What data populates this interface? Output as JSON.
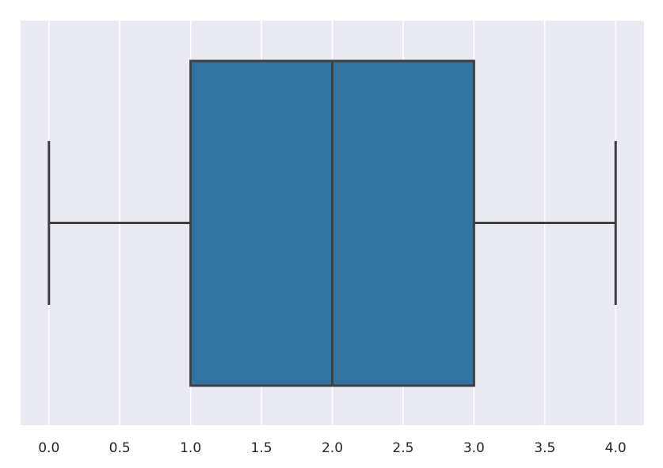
{
  "chart_data": {
    "type": "box",
    "orientation": "horizontal",
    "color": "#3274a1",
    "edge_color": "#3f3f3f",
    "min": 0,
    "q1": 1,
    "median": 2,
    "q3": 3,
    "max": 4,
    "xlim": [
      -0.2,
      4.2
    ],
    "xticks": [
      {
        "value": 0,
        "label": "0.0"
      },
      0.5,
      {
        "value": 1,
        "label": "1.0"
      },
      1.5,
      {
        "value": 2,
        "label": "2.0"
      },
      2.5,
      {
        "value": 3,
        "label": "3.0"
      },
      3.5,
      {
        "value": 4,
        "label": "4.0"
      }
    ],
    "grid": true
  }
}
